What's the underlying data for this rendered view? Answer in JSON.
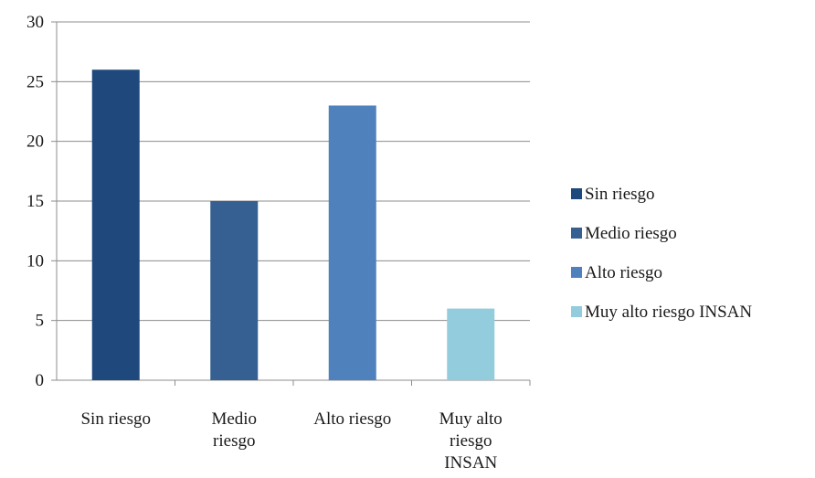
{
  "chart_data": {
    "type": "bar",
    "title": "",
    "xlabel": "",
    "ylabel": "",
    "ylim": [
      0,
      30
    ],
    "yticks": [
      0,
      5,
      10,
      15,
      20,
      25,
      30
    ],
    "grid": true,
    "legend_position": "right",
    "categories": [
      [
        "Sin riesgo"
      ],
      [
        "Medio",
        "riesgo"
      ],
      [
        "Alto riesgo"
      ],
      [
        "Muy alto",
        "riesgo",
        "INSAN"
      ]
    ],
    "values": [
      26,
      15,
      23,
      6
    ],
    "colors": [
      "#1f497d",
      "#376092",
      "#4f81bd",
      "#93cddd"
    ],
    "legend": [
      "Sin riesgo",
      "Medio riesgo",
      "Alto riesgo",
      "Muy alto riesgo INSAN"
    ]
  }
}
